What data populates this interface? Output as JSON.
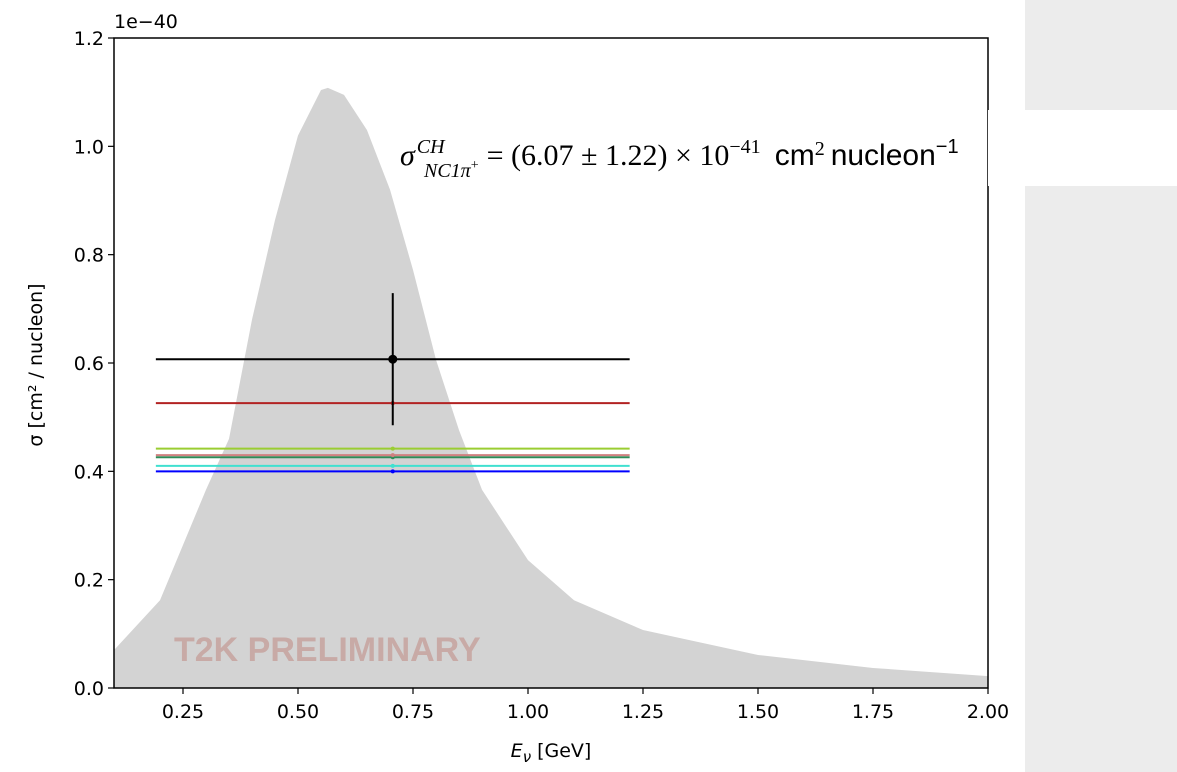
{
  "chart_data": {
    "type": "errorbar",
    "ylabel": "σ [cm² / nucleon]",
    "xlabel": [
      "E",
      "ν",
      "[GeV]"
    ],
    "y_offset_label": "1e−40",
    "annotation": [
      "σ",
      "CH",
      "NC1π",
      "+",
      "= (6.07 ± 1.22) × 10",
      "−41",
      "cm",
      "2",
      "nucleon",
      "−1"
    ],
    "watermark": "T2K PRELIMINARY",
    "xlim": [
      0.1,
      2.0
    ],
    "ylim": [
      0.0,
      1.2
    ],
    "xticks": [
      0.25,
      {
        "value": 0.5,
        "label": "0.50"
      },
      0.75,
      {
        "value": 1.0,
        "label": "1.00"
      },
      1.25,
      {
        "value": 1.5,
        "label": "1.50"
      },
      1.75,
      {
        "value": 2.0,
        "label": "2.00"
      }
    ],
    "yticks": [
      {
        "value": 0.0,
        "label": "0.0"
      },
      0.2,
      0.4,
      0.6,
      0.8,
      {
        "value": 1.0,
        "label": "1.0"
      },
      1.2
    ],
    "flux": {
      "color": "#d3d3d3",
      "x": [
        0.1,
        0.2,
        0.3,
        0.35,
        0.4,
        0.45,
        0.5,
        0.55,
        0.565,
        0.6,
        0.65,
        0.7,
        0.75,
        0.8,
        0.85,
        0.9,
        1.0,
        1.1,
        1.25,
        1.5,
        1.75,
        2.0
      ],
      "values": [
        0.07,
        0.162,
        0.366,
        0.46,
        0.68,
        0.864,
        1.02,
        1.104,
        1.108,
        1.095,
        1.03,
        0.92,
        0.772,
        0.606,
        0.476,
        0.366,
        0.236,
        0.162,
        0.107,
        0.061,
        0.037,
        0.022
      ]
    },
    "x": [
      0.706
    ],
    "xerr": [
      0.515
    ],
    "series": [
      {
        "color": "#000000",
        "values": [
          0.607
        ],
        "yerr": [
          0.122
        ]
      },
      {
        "color": "#b22222",
        "values": [
          0.526
        ]
      },
      {
        "color": "#9acd32",
        "values": [
          0.442
        ]
      },
      {
        "color": "#d08080",
        "values": [
          0.43
        ]
      },
      {
        "color": "#2e8b57",
        "values": [
          0.426
        ]
      },
      {
        "color": "#40e0d0",
        "values": [
          0.41
        ]
      },
      {
        "color": "#0000ff",
        "values": [
          0.4
        ]
      }
    ]
  }
}
